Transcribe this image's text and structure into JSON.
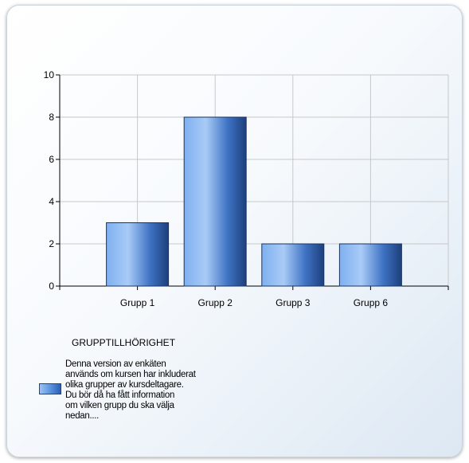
{
  "chart_data": {
    "type": "bar",
    "categories": [
      "Grupp 1",
      "Grupp 2",
      "Grupp 3",
      "Grupp 6"
    ],
    "values": [
      3,
      8,
      2,
      2
    ],
    "ylim": [
      0,
      10
    ],
    "yticks": [
      0,
      2,
      4,
      6,
      8,
      10
    ],
    "grid": true,
    "legend_placement": "bottom-left",
    "bar_color": "#4a86d8"
  },
  "legend": {
    "title": "GRUPPTILLHÖRIGHET",
    "entry": "Denna version av enkäten\nanvänds om kursen har inkluderat\nolika grupper av kursdeltagare.\nDu bör då ha fått information\nom vilken grupp du ska välja\nnedan...."
  }
}
